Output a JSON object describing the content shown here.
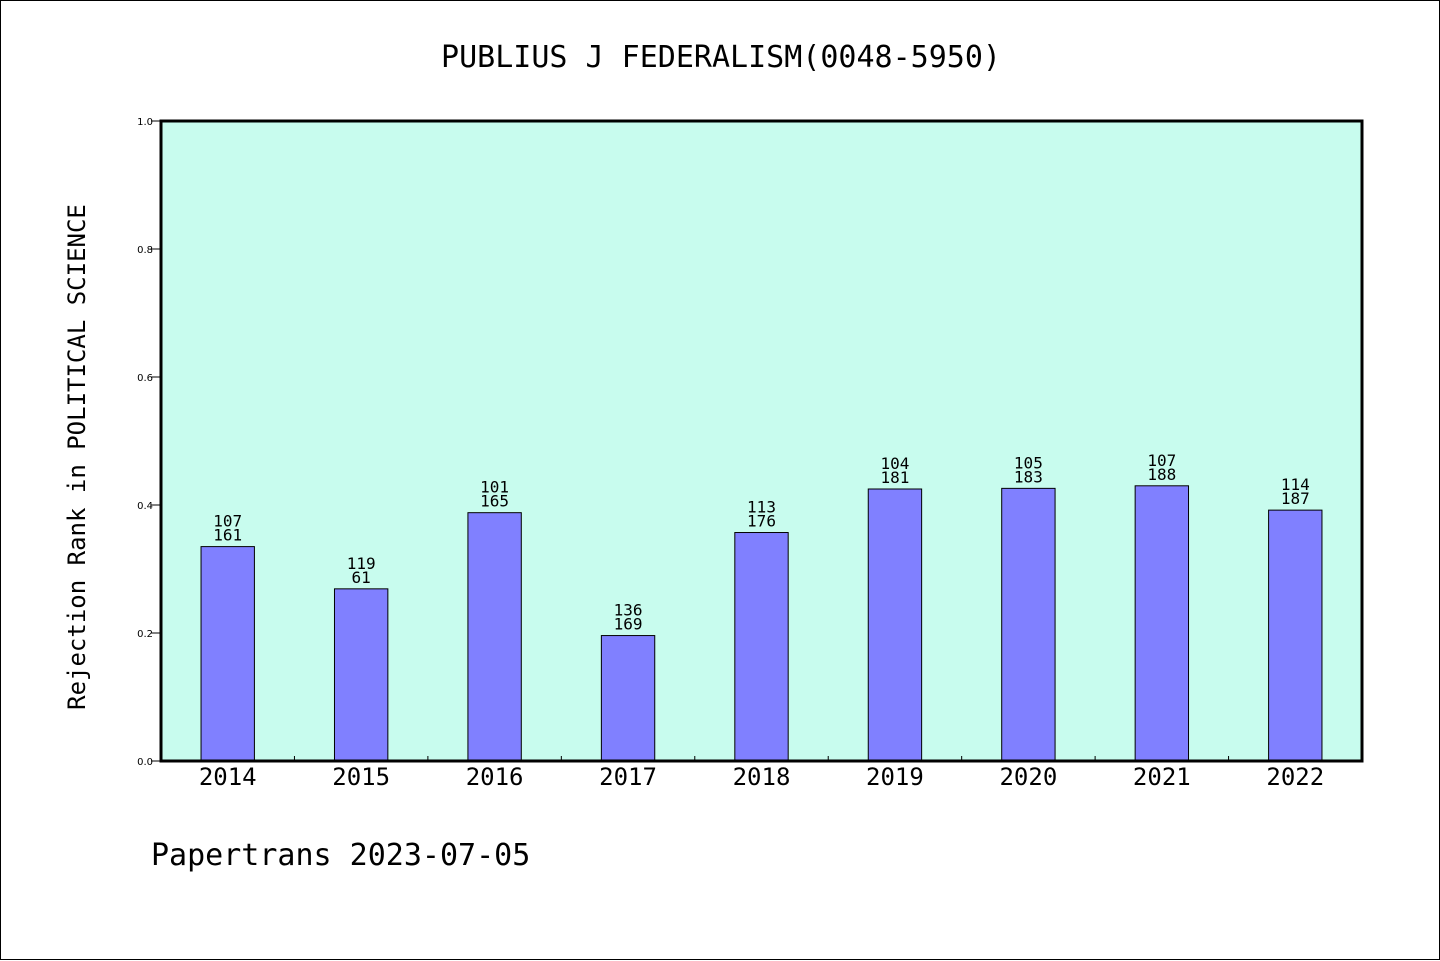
{
  "chart_data": {
    "type": "bar",
    "title": "PUBLIUS J FEDERALISM(0048-5950)",
    "ylabel": "Rejection Rank in POLITICAL SCIENCE",
    "xlabel": "",
    "ylim": [
      0,
      1.0
    ],
    "yticks": [
      "0.0",
      "0.2",
      "0.4",
      "0.6",
      "0.8",
      "1.0"
    ],
    "categories": [
      "2014",
      "2015",
      "2016",
      "2017",
      "2018",
      "2019",
      "2020",
      "2021",
      "2022"
    ],
    "values": [
      0.335,
      0.269,
      0.388,
      0.196,
      0.357,
      0.425,
      0.426,
      0.43,
      0.392
    ],
    "labels_top": [
      "107",
      "119",
      "101",
      "136",
      "113",
      "104",
      "105",
      "107",
      "114"
    ],
    "labels_bottom": [
      "161",
      "61",
      "165",
      "169",
      "176",
      "181",
      "183",
      "188",
      "187"
    ],
    "grid": false,
    "colors": {
      "plot_background": "#c8fcee",
      "bar_fill": "#8080ff",
      "bar_stroke": "#000000"
    }
  },
  "footer": {
    "text": "Papertrans 2023-07-05"
  }
}
